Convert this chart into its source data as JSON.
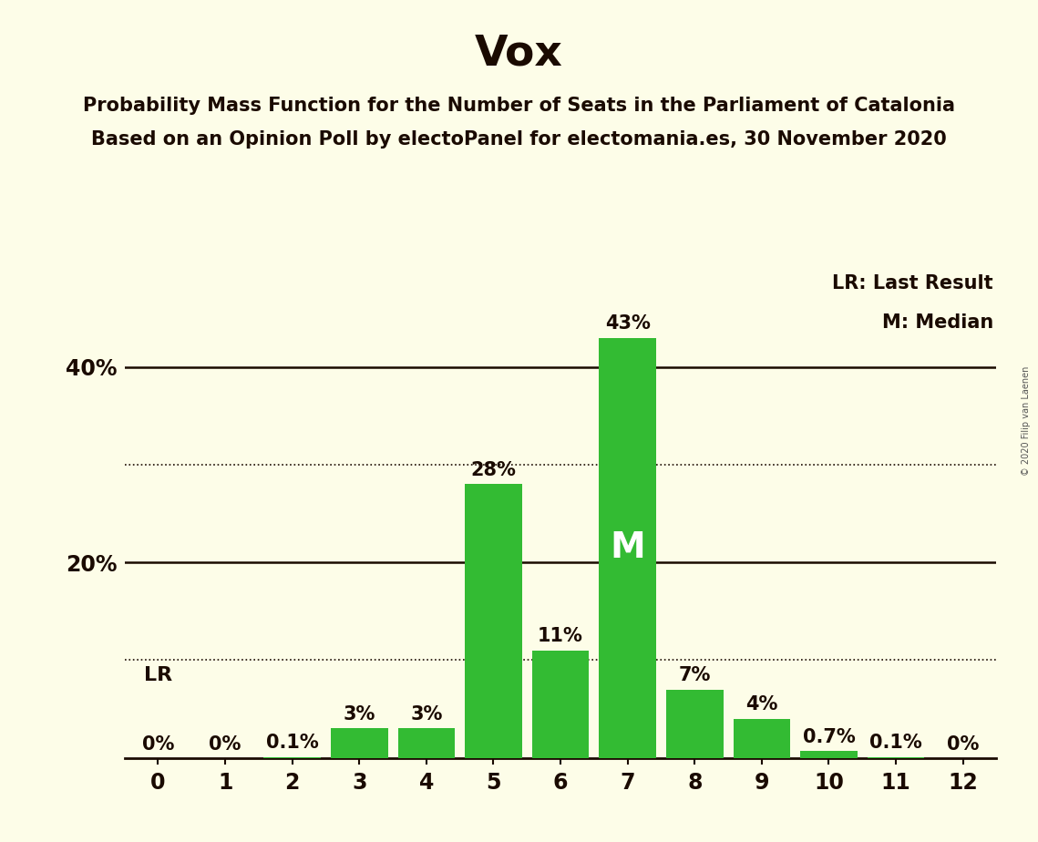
{
  "title": "Vox",
  "subtitle1": "Probability Mass Function for the Number of Seats in the Parliament of Catalonia",
  "subtitle2": "Based on an Opinion Poll by electoPanel for electomania.es, 30 November 2020",
  "copyright": "© 2020 Filip van Laenen",
  "categories": [
    0,
    1,
    2,
    3,
    4,
    5,
    6,
    7,
    8,
    9,
    10,
    11,
    12
  ],
  "values": [
    0.0,
    0.0,
    0.1,
    3.0,
    3.0,
    28.0,
    11.0,
    43.0,
    7.0,
    4.0,
    0.7,
    0.1,
    0.0
  ],
  "labels": [
    "0%",
    "0%",
    "0.1%",
    "3%",
    "3%",
    "28%",
    "11%",
    "43%",
    "7%",
    "4%",
    "0.7%",
    "0.1%",
    "0%"
  ],
  "bar_color": "#33bb33",
  "background_color": "#fdfde8",
  "text_color": "#1a0a00",
  "median_bar": 7,
  "median_label": "M",
  "lr_label": "LR",
  "legend_lr": "LR: Last Result",
  "legend_m": "M: Median",
  "ytick_positions": [
    0,
    10,
    20,
    30,
    40
  ],
  "ytick_labels": [
    "",
    "",
    "20%",
    "",
    "40%"
  ],
  "dotted_yticks": [
    10,
    30
  ],
  "solid_yticks": [
    20,
    40
  ],
  "ylim": [
    0,
    50
  ],
  "xlim": [
    -0.5,
    12.5
  ],
  "title_fontsize": 34,
  "subtitle_fontsize": 15,
  "axis_label_fontsize": 17,
  "bar_label_fontsize": 15,
  "legend_fontsize": 15,
  "lr_fontsize": 16,
  "median_fontsize": 28
}
